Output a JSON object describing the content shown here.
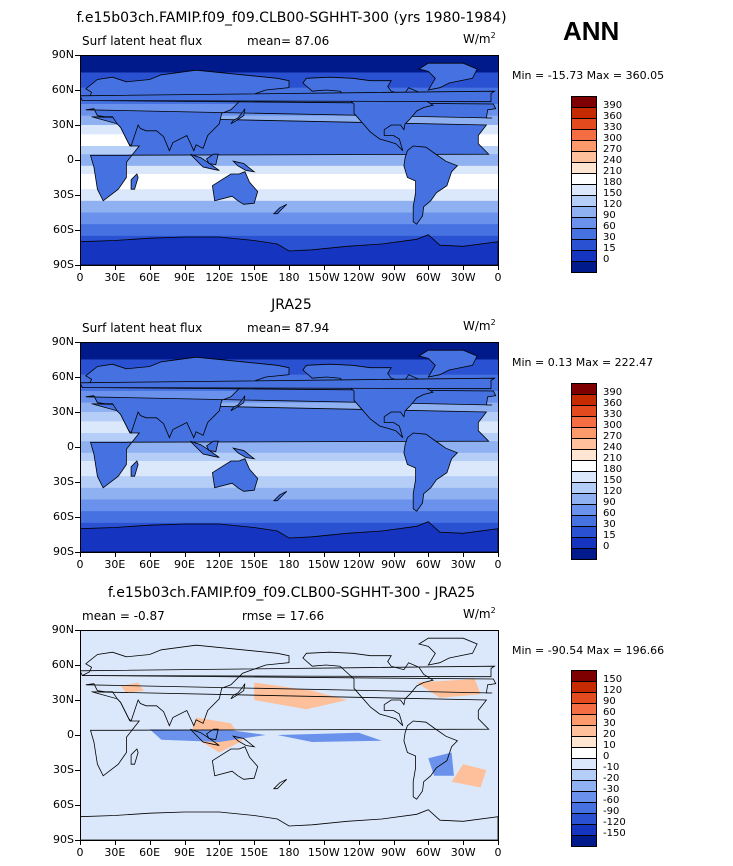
{
  "season": "ANN",
  "panels": [
    {
      "title": "f.e15b03ch.FAMIP.f09_f09.CLB00-SGHHT-300 (yrs 1980-1984)",
      "left_label": "Surf latent heat flux",
      "stat1": "mean=  87.06",
      "stat2": "",
      "units": "W/m",
      "units_sup": "2",
      "minmax": "Min = -15.73  Max = 360.05",
      "levels": [
        "390",
        "360",
        "330",
        "300",
        "270",
        "240",
        "210",
        "180",
        "150",
        "120",
        "90",
        "60",
        "30",
        "15",
        "0"
      ],
      "colors": [
        "#7f0000",
        "#c62a00",
        "#e34a1d",
        "#f46d43",
        "#fc9a6b",
        "#fdc09a",
        "#fee6d3",
        "#ffffff",
        "#dbe8fb",
        "#b5cef7",
        "#8fb1f2",
        "#6a92ec",
        "#4572e0",
        "#2a51d2",
        "#1534c0",
        "#001a8c"
      ],
      "map_kind": "clim1"
    },
    {
      "title": "JRA25",
      "left_label": "Surf latent heat flux",
      "stat1": "mean=  87.94",
      "stat2": "",
      "units": "W/m",
      "units_sup": "2",
      "minmax": "Min =   0.13  Max = 222.47",
      "levels": [
        "390",
        "360",
        "330",
        "300",
        "270",
        "240",
        "210",
        "180",
        "150",
        "120",
        "90",
        "60",
        "30",
        "15",
        "0"
      ],
      "colors": [
        "#7f0000",
        "#c62a00",
        "#e34a1d",
        "#f46d43",
        "#fc9a6b",
        "#fdc09a",
        "#fee6d3",
        "#ffffff",
        "#dbe8fb",
        "#b5cef7",
        "#8fb1f2",
        "#6a92ec",
        "#4572e0",
        "#2a51d2",
        "#1534c0",
        "#001a8c"
      ],
      "map_kind": "clim2"
    },
    {
      "title": "f.e15b03ch.FAMIP.f09_f09.CLB00-SGHHT-300 - JRA25",
      "left_label": "mean =  -0.87",
      "stat1": "rmse =  17.66",
      "stat2": "",
      "units": "W/m",
      "units_sup": "2",
      "minmax": "Min = -90.54  Max = 196.66",
      "levels": [
        "150",
        "120",
        "90",
        "60",
        "30",
        "20",
        "10",
        "0",
        "-10",
        "-20",
        "-30",
        "-60",
        "-90",
        "-120",
        "-150"
      ],
      "colors": [
        "#7f0000",
        "#c62a00",
        "#e34a1d",
        "#f46d43",
        "#fc9a6b",
        "#fdc09a",
        "#fee6d3",
        "#ffffff",
        "#dbe8fb",
        "#b5cef7",
        "#8fb1f2",
        "#6a92ec",
        "#4572e0",
        "#2a51d2",
        "#1534c0",
        "#001a8c"
      ],
      "map_kind": "diff"
    }
  ],
  "lat_ticks": [
    "90N",
    "60N",
    "30N",
    "0",
    "30S",
    "60S",
    "90S"
  ],
  "lon_ticks": [
    "0",
    "30E",
    "60E",
    "90E",
    "120E",
    "150E",
    "180",
    "150W",
    "120W",
    "90W",
    "60W",
    "30W",
    "0"
  ]
}
